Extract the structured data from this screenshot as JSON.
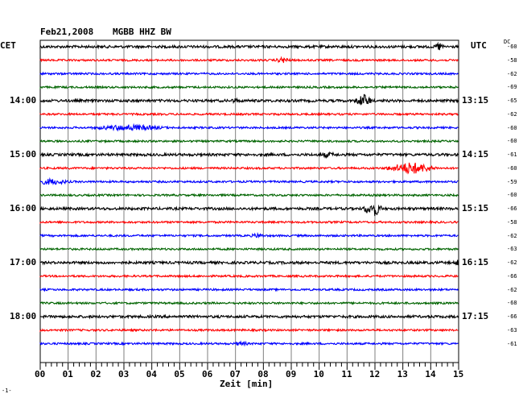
{
  "header": {
    "date": "Feb21,2008",
    "station": "MGBB HHZ BW",
    "left_zone": "CET",
    "right_zone": "UTC",
    "dc_label": "DC"
  },
  "left_times": [
    "14:00",
    "15:00",
    "16:00",
    "17:00",
    "18:00"
  ],
  "right_times": [
    "13:15",
    "14:15",
    "15:15",
    "16:15",
    "17:15"
  ],
  "dc_values": [
    "-60",
    "-58",
    "-62",
    "-69",
    "-65",
    "-62",
    "-60",
    "-60",
    "-61",
    "-60",
    "-59",
    "-60",
    "-66",
    "-58",
    "-62",
    "-63",
    "-62",
    "-66",
    "-62",
    "-68",
    "-66",
    "-63",
    "-61"
  ],
  "x_ticks": [
    "00",
    "01",
    "02",
    "03",
    "04",
    "05",
    "06",
    "07",
    "08",
    "09",
    "10",
    "11",
    "12",
    "13",
    "14",
    "15"
  ],
  "x_axis_label": "Zeit [min]",
  "colors": {
    "trace_cycle": [
      "#000000",
      "#ff0000",
      "#0000ff",
      "#006400"
    ],
    "grid": "#7f7f7f"
  },
  "footnote": "-1-"
}
